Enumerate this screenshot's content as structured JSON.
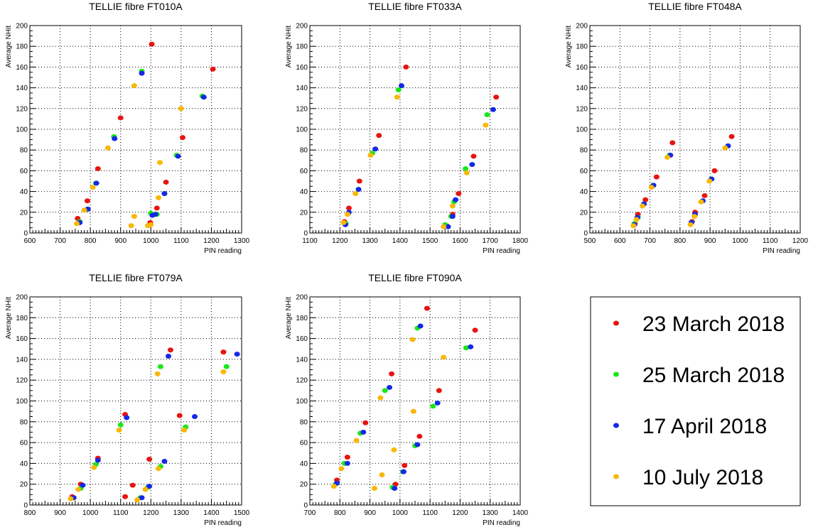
{
  "legend": [
    {
      "label": "23 March 2018",
      "color": "#e8140f"
    },
    {
      "label": "25 March 2018",
      "color": "#18e818"
    },
    {
      "label": "17 April 2018",
      "color": "#1428e8"
    },
    {
      "label": "10 July 2018",
      "color": "#f8b808"
    }
  ],
  "chart_data": [
    {
      "type": "scatter",
      "title": "TELLIE fibre FT010A",
      "xlabel": "PIN reading",
      "ylabel": "Average NHit",
      "xlim": [
        600,
        1300
      ],
      "ylim": [
        0,
        200
      ],
      "xticks": [
        600,
        700,
        800,
        900,
        1000,
        1100,
        1200,
        1300
      ],
      "yticks": [
        0,
        20,
        40,
        60,
        80,
        100,
        120,
        140,
        160,
        180,
        200
      ],
      "grid": true,
      "series": [
        {
          "name": "23 March 2018",
          "x": [
            758,
            790,
            825,
            900,
            1003,
            998,
            1020,
            1050,
            1105,
            1205
          ],
          "y": [
            14,
            31,
            62,
            111,
            182,
            10,
            24,
            49,
            92,
            158
          ]
        },
        {
          "name": "25 March 2018",
          "x": [
            765,
            790,
            818,
            878,
            970,
            1000,
            1020,
            1045,
            1085,
            1170
          ],
          "y": [
            11,
            23,
            48,
            93,
            156,
            19,
            18,
            38,
            75,
            132
          ]
        },
        {
          "name": "17 April 2018",
          "x": [
            765,
            792,
            820,
            880,
            970,
            1005,
            1015,
            1045,
            1090,
            1175
          ],
          "y": [
            10,
            23,
            48,
            91,
            154,
            17,
            18,
            38,
            74,
            131
          ]
        },
        {
          "name": "10 July 2018",
          "x": [
            755,
            780,
            808,
            858,
            945,
            1000,
            1030,
            935,
            945,
            990,
            1025,
            1100
          ],
          "y": [
            9,
            22,
            44,
            82,
            142,
            8,
            68,
            7,
            16,
            7,
            34,
            120
          ]
        }
      ]
    },
    {
      "type": "scatter",
      "title": "TELLIE fibre FT033A",
      "xlabel": "PIN reading",
      "ylabel": "Average NHit",
      "xlim": [
        1100,
        1800
      ],
      "ylim": [
        0,
        200
      ],
      "xticks": [
        1100,
        1200,
        1300,
        1400,
        1500,
        1600,
        1700,
        1800
      ],
      "yticks": [
        0,
        20,
        40,
        60,
        80,
        100,
        120,
        140,
        160,
        180,
        200
      ],
      "grid": true,
      "series": [
        {
          "name": "23 March 2018",
          "x": [
            1215,
            1230,
            1265,
            1330,
            1420,
            1555,
            1575,
            1595,
            1645,
            1720
          ],
          "y": [
            11,
            24,
            50,
            94,
            160,
            7,
            18,
            38,
            74,
            131
          ]
        },
        {
          "name": "25 March 2018",
          "x": [
            1220,
            1228,
            1262,
            1308,
            1395,
            1550,
            1580,
            1618,
            1690,
            1570
          ],
          "y": [
            9,
            19,
            42,
            77,
            138,
            8,
            30,
            62,
            114,
            16
          ]
        },
        {
          "name": "17 April 2018",
          "x": [
            1218,
            1230,
            1262,
            1318,
            1405,
            1560,
            1585,
            1640,
            1710,
            1575
          ],
          "y": [
            8,
            20,
            42,
            81,
            142,
            6,
            32,
            66,
            119,
            16
          ]
        },
        {
          "name": "10 July 2018",
          "x": [
            1212,
            1225,
            1252,
            1302,
            1390,
            1545,
            1575,
            1622,
            1685
          ],
          "y": [
            10,
            18,
            38,
            75,
            131,
            6,
            26,
            58,
            104
          ]
        }
      ]
    },
    {
      "type": "scatter",
      "title": "TELLIE fibre FT048A",
      "xlabel": "PIN reading",
      "ylabel": "Average NHit",
      "xlim": [
        500,
        1200
      ],
      "ylim": [
        0,
        200
      ],
      "xticks": [
        500,
        600,
        700,
        800,
        900,
        1000,
        1100,
        1200
      ],
      "yticks": [
        0,
        20,
        40,
        60,
        80,
        100,
        120,
        140,
        160,
        180,
        200
      ],
      "grid": true,
      "series": [
        {
          "name": "23 March 2018",
          "x": [
            650,
            660,
            685,
            722,
            775,
            840,
            850,
            882,
            915,
            972
          ],
          "y": [
            9,
            18,
            32,
            54,
            87,
            11,
            20,
            36,
            60,
            93
          ]
        },
        {
          "name": "25 March 2018",
          "x": [
            648,
            660,
            680,
            710,
            765,
            838,
            850,
            875,
            905,
            960
          ],
          "y": [
            9,
            15,
            28,
            46,
            75,
            10,
            18,
            31,
            52,
            84
          ]
        },
        {
          "name": "17 April 2018",
          "x": [
            648,
            658,
            680,
            712,
            768,
            838,
            850,
            876,
            905,
            960
          ],
          "y": [
            8,
            15,
            28,
            46,
            75,
            10,
            18,
            31,
            52,
            84
          ]
        },
        {
          "name": "10 July 2018",
          "x": [
            645,
            655,
            675,
            705,
            758,
            835,
            848,
            870,
            898,
            950
          ],
          "y": [
            7,
            13,
            26,
            44,
            73,
            8,
            16,
            30,
            50,
            82
          ]
        }
      ]
    },
    {
      "type": "scatter",
      "title": "TELLIE fibre FT079A",
      "xlabel": "PIN reading",
      "ylabel": "Average NHit",
      "xlim": [
        800,
        1500
      ],
      "ylim": [
        0,
        200
      ],
      "xticks": [
        800,
        900,
        1000,
        1100,
        1200,
        1300,
        1400,
        1500
      ],
      "yticks": [
        0,
        20,
        40,
        60,
        80,
        100,
        120,
        140,
        160,
        180,
        200
      ],
      "grid": true,
      "series": [
        {
          "name": "23 March 2018",
          "x": [
            940,
            968,
            1025,
            1115,
            1265,
            1115,
            1140,
            1195,
            1295,
            1440
          ],
          "y": [
            8,
            20,
            45,
            87,
            149,
            8,
            19,
            44,
            86,
            147
          ]
        },
        {
          "name": "25 March 2018",
          "x": [
            945,
            968,
            1018,
            1100,
            1232,
            1165,
            1190,
            1232,
            1315,
            1450
          ],
          "y": [
            7,
            16,
            39,
            77,
            133,
            7,
            17,
            37,
            75,
            133
          ]
        },
        {
          "name": "17 April 2018",
          "x": [
            945,
            975,
            1025,
            1120,
            1258,
            1170,
            1195,
            1245,
            1345,
            1485
          ],
          "y": [
            7,
            19,
            43,
            84,
            143,
            7,
            18,
            42,
            85,
            145
          ]
        },
        {
          "name": "10 July 2018",
          "x": [
            935,
            960,
            1012,
            1095,
            1222,
            1155,
            1182,
            1225,
            1310,
            1440
          ],
          "y": [
            6,
            15,
            36,
            72,
            126,
            5,
            15,
            35,
            72,
            128
          ]
        }
      ]
    },
    {
      "type": "scatter",
      "title": "TELLIE fibre FT090A",
      "xlabel": "PIN reading",
      "ylabel": "Average NHit",
      "xlim": [
        700,
        1400
      ],
      "ylim": [
        0,
        200
      ],
      "xticks": [
        700,
        800,
        900,
        1000,
        1100,
        1200,
        1300,
        1400
      ],
      "yticks": [
        0,
        20,
        40,
        60,
        80,
        100,
        120,
        140,
        160,
        180,
        200
      ],
      "grid": true,
      "series": [
        {
          "name": "23 March 2018",
          "x": [
            790,
            825,
            885,
            972,
            1090,
            985,
            1015,
            1065,
            1130,
            1250
          ],
          "y": [
            24,
            46,
            79,
            126,
            189,
            20,
            38,
            66,
            110,
            168
          ]
        },
        {
          "name": "25 March 2018",
          "x": [
            785,
            815,
            868,
            950,
            1058,
            975,
            1010,
            1050,
            1110,
            1220
          ],
          "y": [
            20,
            40,
            69,
            110,
            170,
            17,
            32,
            57,
            95,
            151
          ]
        },
        {
          "name": "17 April 2018",
          "x": [
            790,
            825,
            878,
            965,
            1068,
            982,
            1012,
            1058,
            1125,
            1235
          ],
          "y": [
            21,
            40,
            70,
            113,
            172,
            16,
            32,
            58,
            98,
            152
          ]
        },
        {
          "name": "10 July 2018",
          "x": [
            780,
            805,
            855,
            935,
            1042,
            915,
            940,
            980,
            1045,
            1145
          ],
          "y": [
            18,
            35,
            62,
            103,
            159,
            16,
            29,
            53,
            90,
            142
          ]
        }
      ]
    }
  ]
}
